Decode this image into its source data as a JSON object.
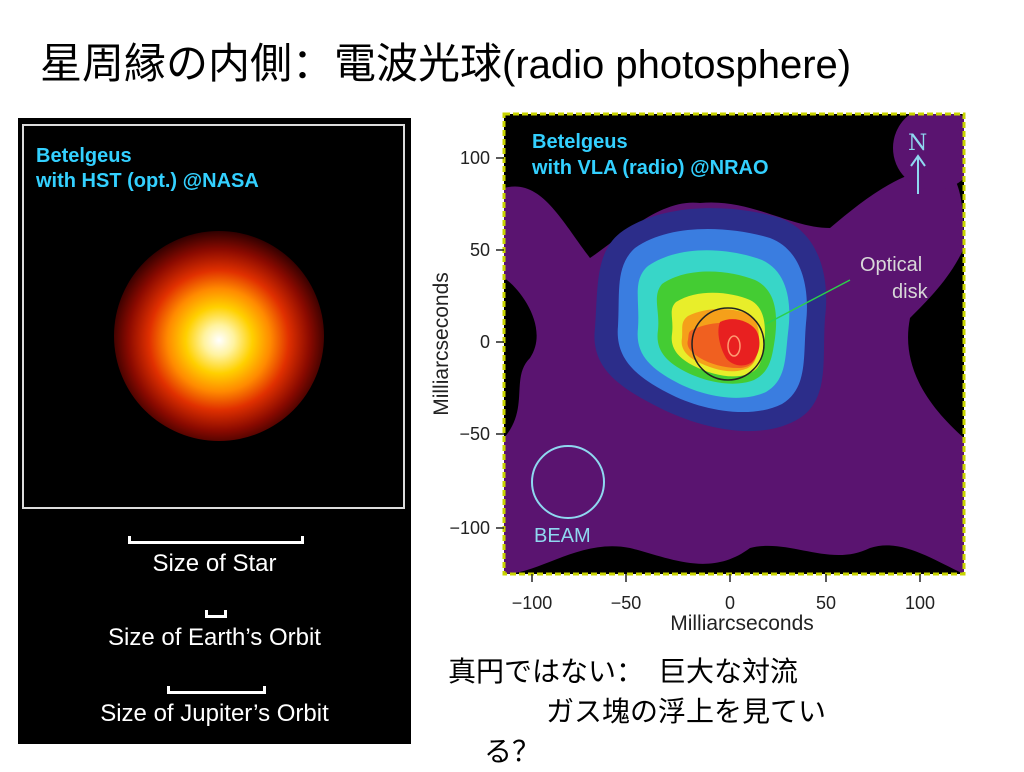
{
  "slide": {
    "title_jp": "星周縁の内側：電波光球",
    "title_en": "(radio photosphere)"
  },
  "hst_panel": {
    "label_line1": "Betelgeus",
    "label_line2": "with HST (opt.) @NASA",
    "scale_star": "Size of Star",
    "scale_earth": "Size of Earth’s Orbit",
    "scale_jupiter": "Size of Jupiter’s Orbit"
  },
  "vla_panel": {
    "label_line1": "Betelgeus",
    "label_line2": "with VLA (radio) @NRAO",
    "north_label": "N",
    "optical_label_line1": "Optical",
    "optical_label_line2": "disk",
    "beam_label": "BEAM",
    "x_axis_label": "Milliarcseconds",
    "y_axis_label": "Milliarcseconds",
    "x_ticks": [
      "−100",
      "−50",
      "0",
      "50",
      "100"
    ],
    "y_ticks": [
      "100",
      "50",
      "0",
      "−50",
      "−100"
    ],
    "colors": {
      "background": "#000000",
      "outer_contour": "#5a1470",
      "frame": "#c8d400"
    }
  },
  "caption": {
    "line1": "真円ではない：　巨大な対流",
    "line2": "ガス塊の浮上を見てい",
    "line3": "る？"
  }
}
